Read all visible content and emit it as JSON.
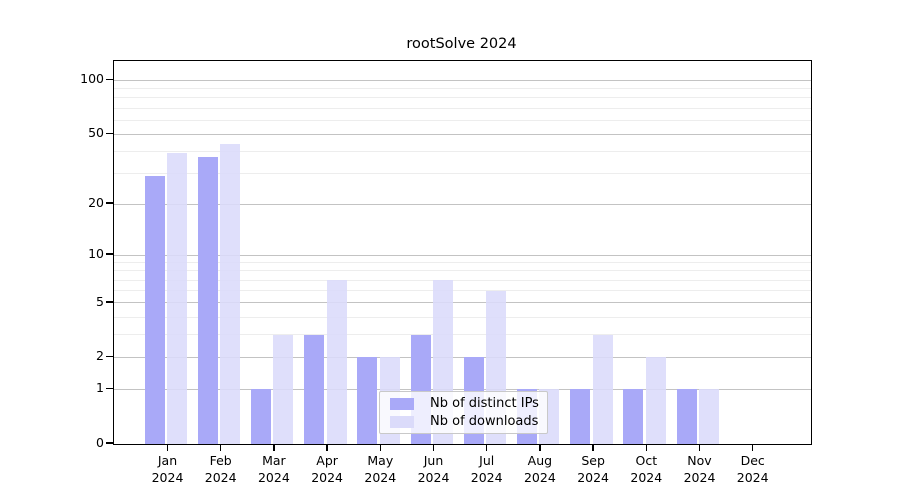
{
  "page": {
    "background": "#ffffff"
  },
  "chart_data": {
    "type": "bar",
    "title": "rootSolve 2024",
    "scale": "log10(1+x)",
    "year_label": "2024",
    "categories": [
      "Jan",
      "Feb",
      "Mar",
      "Apr",
      "May",
      "Jun",
      "Jul",
      "Aug",
      "Sep",
      "Oct",
      "Nov",
      "Dec"
    ],
    "series": [
      {
        "name": "Nb of distinct IPs",
        "color": "#a9a9f8",
        "opacity": 1,
        "values": [
          29,
          37,
          1,
          3,
          2,
          3,
          2,
          1,
          1,
          1,
          1,
          0
        ]
      },
      {
        "name": "Nb of downloads",
        "color": "#dbdbfa",
        "opacity": 0.88,
        "values": [
          39,
          44,
          3,
          7,
          2,
          7,
          6,
          1,
          3,
          2,
          1,
          0
        ]
      }
    ],
    "yticks": [
      100,
      50,
      20,
      10,
      5,
      2,
      1,
      0
    ],
    "ylim": [
      0,
      135
    ],
    "major_gridlines": [
      1,
      2,
      5,
      10,
      20,
      50,
      100
    ],
    "minor_gridlines": [
      3,
      4,
      6,
      7,
      8,
      9,
      30,
      40,
      60,
      70,
      80,
      90
    ],
    "major_gridline_color": "#c3c3c3",
    "minor_gridline_color": "#ededed",
    "axis_color": "#000000",
    "legend_position": "bottom-center-inside",
    "grid": "on"
  }
}
